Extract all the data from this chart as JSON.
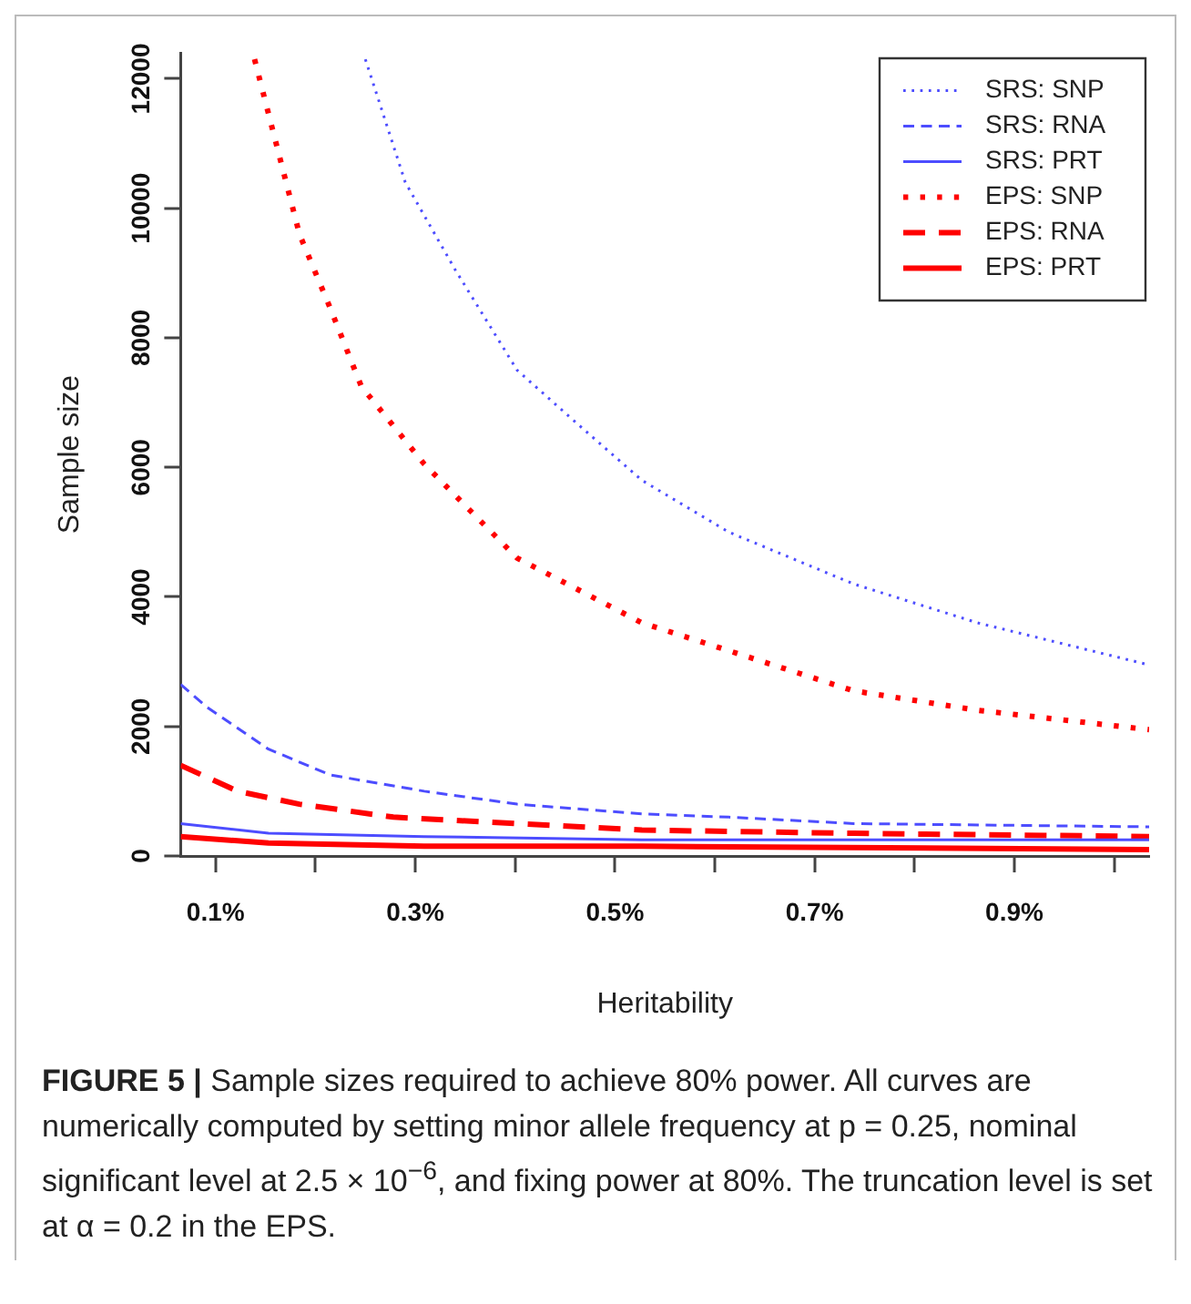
{
  "chart_data": {
    "type": "line",
    "xlabel": "Heritability",
    "ylabel": "Sample size",
    "xlim": [
      0.065,
      1.035
    ],
    "ylim": [
      0,
      12400
    ],
    "xticks": [
      {
        "value": 0.1,
        "label": "0.1%"
      },
      {
        "value": 0.2,
        "label": null
      },
      {
        "value": 0.3,
        "label": "0.3%"
      },
      {
        "value": 0.4,
        "label": null
      },
      {
        "value": 0.5,
        "label": "0.5%"
      },
      {
        "value": 0.6,
        "label": null
      },
      {
        "value": 0.7,
        "label": "0.7%"
      },
      {
        "value": 0.8,
        "label": null
      },
      {
        "value": 0.9,
        "label": "0.9%"
      },
      {
        "value": 1.0,
        "label": null
      }
    ],
    "yticks": [
      0,
      2000,
      4000,
      6000,
      8000,
      10000,
      12000
    ],
    "grid": false,
    "legend": "top right",
    "marker": "none",
    "series": [
      {
        "name": "SRS: SNP",
        "color": "#4d4dff",
        "line_style": "dotted",
        "x": [
          0.25,
          0.29,
          0.34,
          0.402,
          0.464,
          0.527,
          0.614,
          0.739,
          0.863,
          1.035
        ],
        "values": [
          12300,
          10400,
          9050,
          7500,
          6650,
          5800,
          5000,
          4200,
          3600,
          2950
        ]
      },
      {
        "name": "SRS: RNA",
        "color": "#4d4dff",
        "line_style": "dashed",
        "x": [
          0.065,
          0.091,
          0.153,
          0.215,
          0.309,
          0.402,
          0.527,
          0.614,
          0.739,
          1.035
        ],
        "values": [
          2650,
          2300,
          1650,
          1250,
          1000,
          800,
          650,
          600,
          500,
          450
        ]
      },
      {
        "name": "SRS: PRT",
        "color": "#4d4dff",
        "line_style": "solid",
        "x": [
          0.065,
          0.153,
          0.309,
          0.527,
          1.035
        ],
        "values": [
          500,
          350,
          300,
          250,
          250
        ]
      },
      {
        "name": "EPS: SNP",
        "color": "#ff0000",
        "line_style": "dotted",
        "x": [
          0.139,
          0.184,
          0.215,
          0.246,
          0.309,
          0.402,
          0.527,
          0.739,
          0.863,
          1.035
        ],
        "values": [
          12300,
          9600,
          8450,
          7250,
          6050,
          4600,
          3600,
          2550,
          2250,
          1950
        ]
      },
      {
        "name": "EPS: RNA",
        "color": "#ff0000",
        "line_style": "dashed",
        "x": [
          0.065,
          0.122,
          0.184,
          0.278,
          0.402,
          0.527,
          0.739,
          1.035
        ],
        "values": [
          1400,
          1000,
          800,
          600,
          500,
          400,
          350,
          300
        ]
      },
      {
        "name": "EPS: PRT",
        "color": "#ff0000",
        "line_style": "solid",
        "x": [
          0.065,
          0.153,
          0.309,
          0.527,
          1.035
        ],
        "values": [
          300,
          200,
          150,
          150,
          100
        ]
      }
    ],
    "annotations": [
      "FIGURE 5 |",
      "Sample sizes required to achieve 80% power. All curves are numerically computed by setting minor allele frequency at p = 0.25, nominal significant level at 2.5 × 10$^{−6}$, and fixing power at 80%. The truncation level is set at α = 0.2 in the EPS."
    ]
  }
}
